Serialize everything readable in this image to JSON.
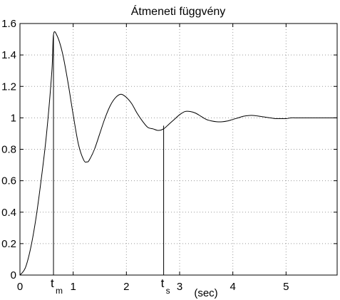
{
  "chart_data": {
    "type": "line",
    "title": "Átmeneti függvény",
    "xlabel": "(sec)",
    "ylabel": "",
    "xlim": [
      0,
      5.96
    ],
    "ylim": [
      0,
      1.6
    ],
    "grid": true,
    "x_ticks": [
      0,
      1,
      2,
      3,
      4,
      5
    ],
    "x_tick_labels": [
      "0",
      "1",
      "2",
      "3",
      "4",
      "5"
    ],
    "y_ticks": [
      0,
      0.2,
      0.4,
      0.6,
      0.8,
      1,
      1.2,
      1.4,
      1.6
    ],
    "y_tick_labels": [
      "0",
      "0.2",
      "0.4",
      "0.6",
      "0.8",
      "1",
      "1.2",
      "1.4",
      "1.6"
    ],
    "series": [
      {
        "x": [
          0,
          0.1,
          0.2,
          0.3,
          0.4,
          0.5,
          0.6,
          0.63,
          0.7,
          0.8,
          0.9,
          1.0,
          1.1,
          1.2,
          1.26,
          1.3,
          1.4,
          1.5,
          1.6,
          1.7,
          1.8,
          1.9,
          2.0,
          2.1,
          2.2,
          2.3,
          2.4,
          2.5,
          2.6,
          2.7,
          2.8,
          2.9,
          3.0,
          3.1,
          3.2,
          3.3,
          3.4,
          3.5,
          3.6,
          3.7,
          3.8,
          3.9,
          4.0,
          4.1,
          4.2,
          4.3,
          4.4,
          4.5,
          4.6,
          4.7,
          4.8,
          4.9,
          5.0,
          5.1,
          5.2,
          5.3,
          5.4,
          5.5,
          5.6,
          5.7,
          5.8,
          5.96
        ],
        "y": [
          0,
          0.045,
          0.17,
          0.36,
          0.61,
          0.9,
          1.3,
          1.53,
          1.52,
          1.41,
          1.23,
          1.02,
          0.83,
          0.73,
          0.72,
          0.73,
          0.8,
          0.9,
          1.0,
          1.08,
          1.13,
          1.15,
          1.13,
          1.09,
          1.03,
          0.98,
          0.94,
          0.93,
          0.92,
          0.93,
          0.96,
          0.99,
          1.02,
          1.04,
          1.04,
          1.03,
          1.01,
          0.99,
          0.98,
          0.975,
          0.975,
          0.98,
          0.99,
          1.0,
          1.01,
          1.015,
          1.015,
          1.01,
          1.005,
          1.0,
          0.995,
          0.995,
          0.995,
          1.0,
          1.0,
          1.0,
          1.0,
          1.0,
          1.0,
          1.0,
          1.0,
          1.0
        ]
      }
    ],
    "markers": [
      {
        "main": "t",
        "sub": "m",
        "x": 0.63,
        "y": 1.53
      },
      {
        "main": "t",
        "sub": "s",
        "x": 2.7,
        "y": 0.95
      }
    ]
  }
}
